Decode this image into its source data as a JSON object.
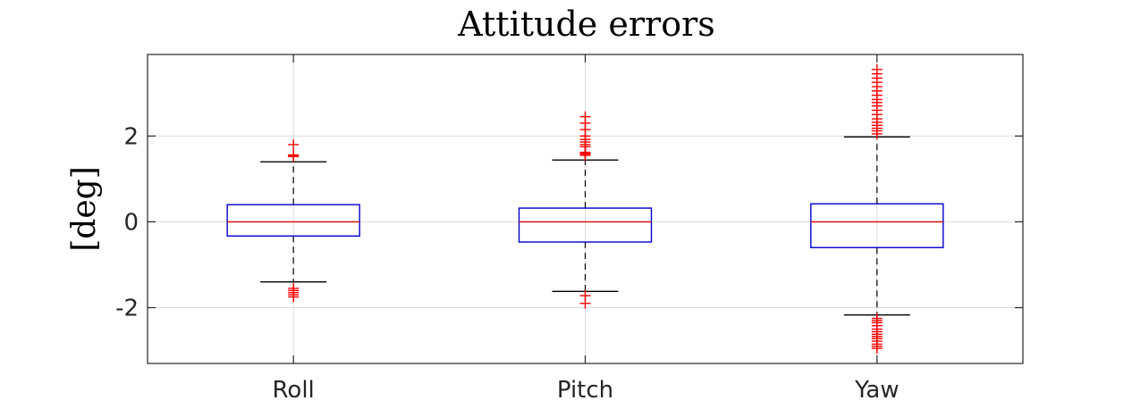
{
  "chart_data": {
    "type": "box",
    "title": "Attitude errors",
    "xlabel": "",
    "ylabel": "[deg]",
    "ylim": [
      -3.3,
      3.9
    ],
    "yticks": [
      -2,
      0,
      2
    ],
    "ytick_labels": [
      "-2",
      "0",
      "2"
    ],
    "grid": true,
    "categories": [
      "Roll",
      "Pitch",
      "Yaw"
    ],
    "boxes": [
      {
        "category": "Roll",
        "q1": -0.33,
        "median": 0.0,
        "q3": 0.4,
        "whisker_low": -1.4,
        "whisker_high": 1.4,
        "outliers": [
          -1.55,
          -1.6,
          -1.65,
          -1.7,
          -1.75,
          1.52,
          1.54,
          1.56,
          1.8
        ]
      },
      {
        "category": "Pitch",
        "q1": -0.47,
        "median": 0.0,
        "q3": 0.32,
        "whisker_low": -1.62,
        "whisker_high": 1.44,
        "outliers": [
          -1.72,
          -1.9,
          1.55,
          1.58,
          1.6,
          1.62,
          1.75,
          1.8,
          1.86,
          1.92,
          2.0,
          2.15,
          2.3,
          2.45
        ]
      },
      {
        "category": "Yaw",
        "q1": -0.6,
        "median": 0.0,
        "q3": 0.42,
        "whisker_low": -2.17,
        "whisker_high": 1.98,
        "outliers": [
          -2.25,
          -2.3,
          -2.35,
          -2.42,
          -2.5,
          -2.56,
          -2.62,
          -2.67,
          -2.72,
          -2.78,
          -2.85,
          -2.9,
          -2.95,
          2.05,
          2.12,
          2.18,
          2.25,
          2.32,
          2.4,
          2.5,
          2.6,
          2.7,
          2.78,
          2.85,
          2.95,
          3.05,
          3.15,
          3.25,
          3.35,
          3.45,
          3.55
        ]
      }
    ],
    "colors": {
      "box": "#0000cc",
      "median": "#e00000",
      "whisker": "#000000",
      "outlier": "#ff0000",
      "grid": "#dcdcdc",
      "axes": "#262626"
    }
  }
}
